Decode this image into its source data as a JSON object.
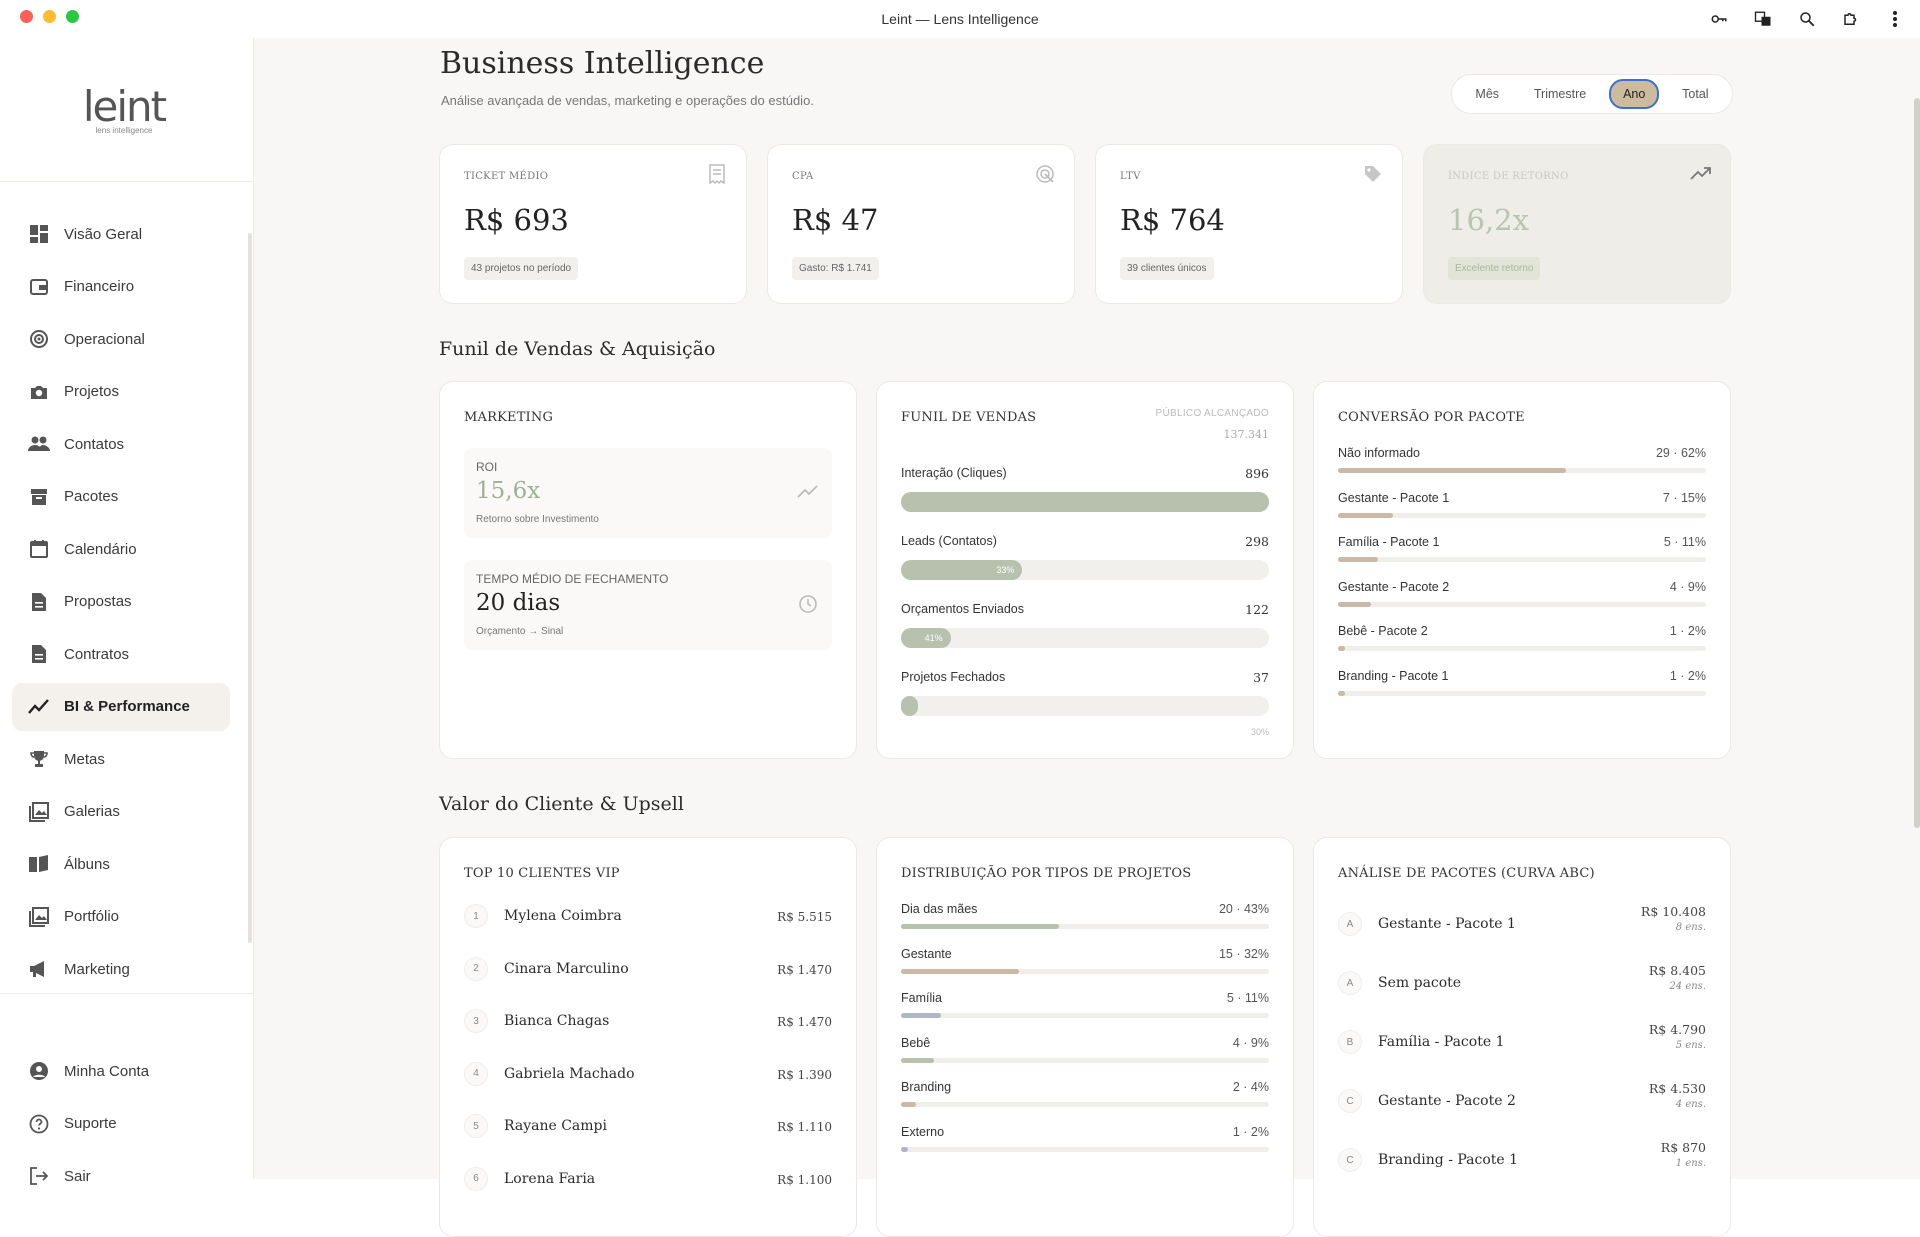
{
  "window": {
    "title": "Leint — Lens Intelligence"
  },
  "logo": {
    "wordmark": "leint",
    "tagline": "lens intelligence"
  },
  "sidebar": {
    "items": [
      {
        "label": "Visão Geral",
        "icon": "dashboard-icon"
      },
      {
        "label": "Financeiro",
        "icon": "wallet-icon"
      },
      {
        "label": "Operacional",
        "icon": "gauge-icon"
      },
      {
        "label": "Projetos",
        "icon": "camera-icon"
      },
      {
        "label": "Contatos",
        "icon": "people-icon"
      },
      {
        "label": "Pacotes",
        "icon": "archive-icon"
      },
      {
        "label": "Calendário",
        "icon": "calendar-icon"
      },
      {
        "label": "Propostas",
        "icon": "document-icon"
      },
      {
        "label": "Contratos",
        "icon": "document-icon"
      },
      {
        "label": "BI & Performance",
        "icon": "trending-icon",
        "active": true
      },
      {
        "label": "Metas",
        "icon": "trophy-icon"
      },
      {
        "label": "Galerias",
        "icon": "gallery-icon"
      },
      {
        "label": "Álbuns",
        "icon": "book-icon"
      },
      {
        "label": "Portfólio",
        "icon": "gallery-icon"
      },
      {
        "label": "Marketing",
        "icon": "megaphone-icon"
      }
    ],
    "footer": [
      {
        "label": "Minha Conta",
        "icon": "account-icon"
      },
      {
        "label": "Suporte",
        "icon": "help-icon"
      },
      {
        "label": "Sair",
        "icon": "logout-icon"
      }
    ]
  },
  "header": {
    "title": "Business Intelligence",
    "subtitle": "Análise avançada de vendas, marketing e operações do estúdio.",
    "periods": [
      "Mês",
      "Trimestre",
      "Ano",
      "Total"
    ],
    "selected_period": "Ano"
  },
  "kpis": [
    {
      "label": "TICKET MÉDIO",
      "value": "R$ 693",
      "note": "43 projetos no período",
      "icon": "receipt-icon"
    },
    {
      "label": "CPA",
      "value": "R$ 47",
      "note": "Gasto: R$ 1.741",
      "icon": "target-icon"
    },
    {
      "label": "LTV",
      "value": "R$ 764",
      "note": "39 clientes únicos",
      "icon": "tag-icon"
    },
    {
      "label": "ÍNDICE DE RETORNO",
      "value": "16,2x",
      "note": "Excelente retorno",
      "icon": "trending-up-icon"
    }
  ],
  "section1": {
    "title": "Funil de Vendas & Aquisição"
  },
  "marketing": {
    "title": "MARKETING",
    "roi": {
      "label": "ROI",
      "value": "15,6x",
      "sub": "Retorno sobre Investimento"
    },
    "tempo": {
      "label": "TEMPO MÉDIO DE FECHAMENTO",
      "value": "20 dias",
      "sub": "Orçamento → Sinal"
    }
  },
  "funil": {
    "title": "FUNIL DE VENDAS",
    "publico_label": "PÚBLICO ALCANÇADO",
    "publico_value": "137.341",
    "rows": [
      {
        "label": "Interação (Cliques)",
        "value": "896",
        "fraction": 1.0,
        "pct": ""
      },
      {
        "label": "Leads (Contatos)",
        "value": "298",
        "fraction": 0.33,
        "pct": "33%"
      },
      {
        "label": "Orçamentos Enviados",
        "value": "122",
        "fraction": 0.135,
        "pct": "41%"
      },
      {
        "label": "Projetos Fechados",
        "value": "37",
        "fraction": 0.04,
        "pct": ""
      }
    ],
    "final_pct": "30%"
  },
  "conversao": {
    "title": "CONVERSÃO POR PACOTE",
    "rows": [
      {
        "label": "Não informado",
        "value": "29 · 62%",
        "fraction": 0.62,
        "color": "#c9b9a6"
      },
      {
        "label": "Gestante - Pacote 1",
        "value": "7 · 15%",
        "fraction": 0.15,
        "color": "#c9b9a6"
      },
      {
        "label": "Família - Pacote 1",
        "value": "5 · 11%",
        "fraction": 0.11,
        "color": "#c9b9a6"
      },
      {
        "label": "Gestante - Pacote 2",
        "value": "4 · 9%",
        "fraction": 0.09,
        "color": "#c9b9a6"
      },
      {
        "label": "Bebê - Pacote 2",
        "value": "1 · 2%",
        "fraction": 0.02,
        "color": "#c9b9a6"
      },
      {
        "label": "Branding - Pacote 1",
        "value": "1 · 2%",
        "fraction": 0.02,
        "color": "#c9b9a6"
      }
    ]
  },
  "section2": {
    "title": "Valor do Cliente & Upsell"
  },
  "vip": {
    "title": "TOP 10 CLIENTES VIP",
    "rows": [
      {
        "n": "1",
        "name": "Mylena Coimbra",
        "amount": "R$ 5.515"
      },
      {
        "n": "2",
        "name": "Cinara Marculino",
        "amount": "R$ 1.470"
      },
      {
        "n": "3",
        "name": "Bianca Chagas",
        "amount": "R$ 1.470"
      },
      {
        "n": "4",
        "name": "Gabriela Machado",
        "amount": "R$ 1.390"
      },
      {
        "n": "5",
        "name": "Rayane Campi",
        "amount": "R$ 1.110"
      },
      {
        "n": "6",
        "name": "Lorena Faria",
        "amount": "R$ 1.100"
      }
    ]
  },
  "distribuicao": {
    "title": "DISTRIBUIÇÃO POR TIPOS DE PROJETOS",
    "rows": [
      {
        "label": "Dia das mães",
        "value": "20 · 43%",
        "fraction": 0.43,
        "color": "#b7c1ad"
      },
      {
        "label": "Gestante",
        "value": "15 · 32%",
        "fraction": 0.32,
        "color": "#c9b9a6"
      },
      {
        "label": "Família",
        "value": "5 · 11%",
        "fraction": 0.11,
        "color": "#aeb6c7"
      },
      {
        "label": "Bebê",
        "value": "4 · 9%",
        "fraction": 0.09,
        "color": "#b7c1ad"
      },
      {
        "label": "Branding",
        "value": "2 · 4%",
        "fraction": 0.04,
        "color": "#c9b9a6"
      },
      {
        "label": "Externo",
        "value": "1 · 2%",
        "fraction": 0.02,
        "color": "#aeb6c7"
      }
    ]
  },
  "abc": {
    "title": "ANÁLISE DE PACOTES (CURVA ABC)",
    "rows": [
      {
        "grade": "A",
        "name": "Gestante - Pacote 1",
        "amount": "R$ 10.408",
        "count": "8 ens."
      },
      {
        "grade": "A",
        "name": "Sem pacote",
        "amount": "R$ 8.405",
        "count": "24 ens."
      },
      {
        "grade": "B",
        "name": "Família - Pacote 1",
        "amount": "R$ 4.790",
        "count": "5 ens."
      },
      {
        "grade": "C",
        "name": "Gestante - Pacote 2",
        "amount": "R$ 4.530",
        "count": "4 ens."
      },
      {
        "grade": "C",
        "name": "Branding - Pacote 1",
        "amount": "R$ 870",
        "count": "1 ens."
      }
    ]
  }
}
